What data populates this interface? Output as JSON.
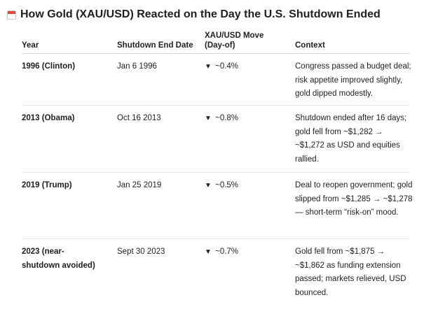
{
  "title": "How Gold (XAU/USD) Reacted on the Day the U.S. Shutdown Ended",
  "icon": "calendar-icon",
  "columns": {
    "year": "Year",
    "date": "Shutdown End Date",
    "move_line1": "XAU/USD Move",
    "move_line2": "(Day-of)",
    "context": "Context"
  },
  "rows": [
    {
      "year": "1996 (Clinton)",
      "date": "Jan 6 1996",
      "arrow": "▼",
      "move": "~0.4%",
      "context": "Congress passed a budget deal; risk appetite improved slightly, gold dipped modestly."
    },
    {
      "year": "2013 (Obama)",
      "date": "Oct 16 2013",
      "arrow": "▼",
      "move": "~0.8%",
      "context": "Shutdown ended after 16 days; gold fell from ~$1,282 → ~$1,272 as USD and equities rallied."
    },
    {
      "year": "2019 (Trump)",
      "date": "Jan 25 2019",
      "arrow": "▼",
      "move": "~0.5%",
      "context": "Deal to reopen government; gold slipped from ~$1,285 → ~$1,278 — short-term “risk-on” mood."
    },
    {
      "year": "2023 (near-shutdown avoided)",
      "date": "Sept 30 2023",
      "arrow": "▼",
      "move": "~0.7%",
      "context": "Gold fell from ~$1,875 → ~$1,862 as funding extension passed; markets relieved, USD bounced."
    }
  ]
}
